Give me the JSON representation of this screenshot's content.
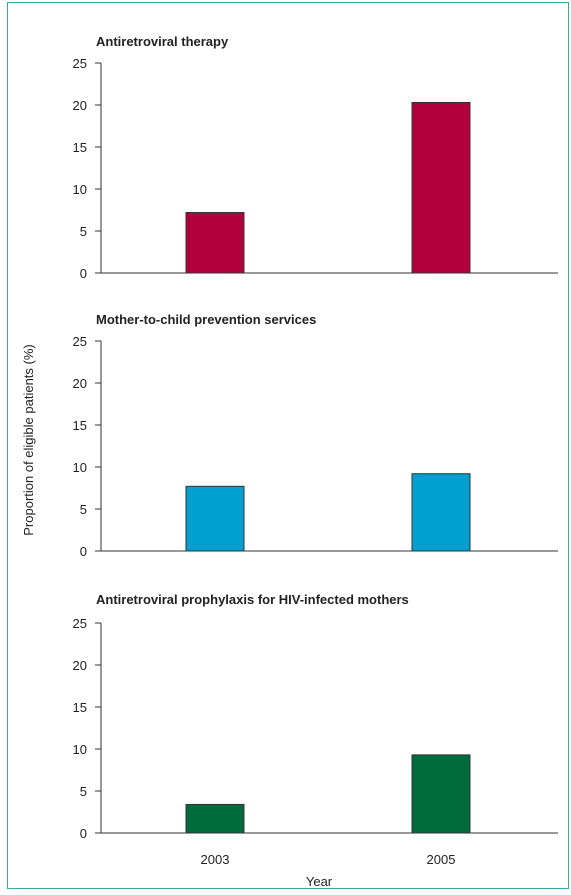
{
  "y_axis_label": "Proportion of eligible patients (%)",
  "x_axis_label": "Year",
  "chart_data": [
    {
      "type": "bar",
      "title": "Antiretroviral therapy",
      "categories": [
        "2003",
        "2005"
      ],
      "values": [
        7.2,
        20.3
      ],
      "ylim": [
        0,
        25
      ],
      "yticks": [
        0,
        5,
        10,
        15,
        20,
        25
      ],
      "color": "#b3003c",
      "show_x_tick_labels": false
    },
    {
      "type": "bar",
      "title": "Mother-to-child prevention services",
      "categories": [
        "2003",
        "2005"
      ],
      "values": [
        7.7,
        9.2
      ],
      "ylim": [
        0,
        25
      ],
      "yticks": [
        0,
        5,
        10,
        15,
        20,
        25
      ],
      "color": "#00a0d0",
      "show_x_tick_labels": false
    },
    {
      "type": "bar",
      "title": "Antiretroviral prophylaxis for HIV-infected mothers",
      "categories": [
        "2003",
        "2005"
      ],
      "values": [
        3.4,
        9.3
      ],
      "ylim": [
        0,
        25
      ],
      "yticks": [
        0,
        5,
        10,
        15,
        20,
        25
      ],
      "color": "#006b3c",
      "show_x_tick_labels": true
    }
  ]
}
